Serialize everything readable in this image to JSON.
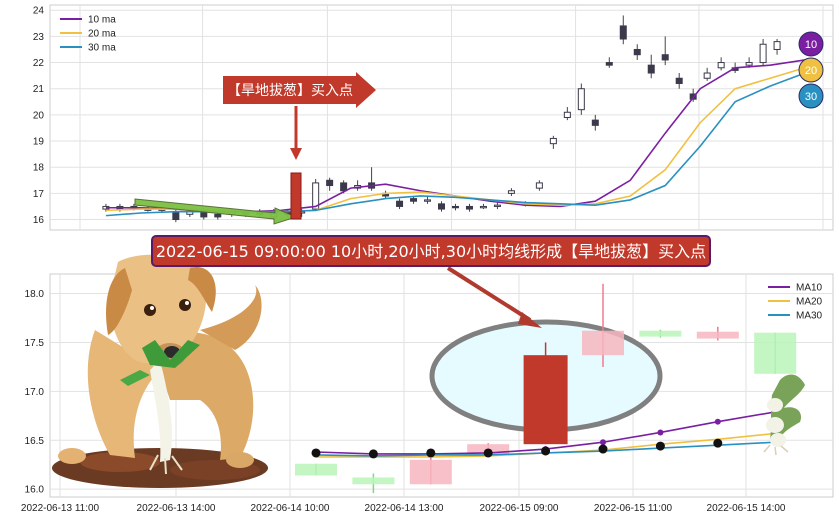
{
  "colors": {
    "ma10": "#7b1fa2",
    "ma20": "#f0c040",
    "ma30": "#2a90c0",
    "candle_up": "#c0392b",
    "candle_down_light": "#f7b6c0",
    "candle_green": "#b9f5b9",
    "banner_bg": "#c0392b",
    "banner_border": "#5a1a6a",
    "ellipse_stroke": "#808080",
    "ellipse_fill": "#e6fbff"
  },
  "annotations": {
    "arrow_label": "【旱地拔葱】买入点",
    "banner_text": "2022-06-15 09:00:00 10小时,20小时,30小时均线形成【旱地拔葱】买入点"
  },
  "badges": [
    "10",
    "20",
    "30"
  ],
  "chart_data": [
    {
      "type": "line",
      "name": "top-overview",
      "legend": [
        "10 ma",
        "20 ma",
        "30 ma"
      ],
      "legend_position": "top-left",
      "grid": true,
      "ylim": [
        15.6,
        24.2
      ],
      "yticks": [
        "16",
        "17",
        "18",
        "19",
        "20",
        "21",
        "22",
        "23",
        "24"
      ],
      "x": [
        0,
        5,
        10,
        15,
        20,
        25,
        30,
        35,
        40,
        45,
        50,
        55,
        60,
        65,
        70,
        75,
        80,
        85,
        90,
        95,
        100
      ],
      "series": [
        {
          "name": "10 ma",
          "values": [
            16.45,
            16.45,
            16.4,
            16.3,
            16.3,
            16.35,
            16.5,
            17.2,
            17.35,
            17.1,
            16.9,
            16.7,
            16.55,
            16.5,
            16.7,
            17.5,
            19.3,
            21.0,
            21.8,
            21.9,
            22.1
          ]
        },
        {
          "name": "20 ma",
          "values": [
            16.35,
            16.4,
            16.4,
            16.35,
            16.3,
            16.3,
            16.35,
            16.8,
            17.0,
            17.05,
            16.9,
            16.75,
            16.6,
            16.55,
            16.6,
            16.9,
            17.9,
            19.7,
            21.0,
            21.4,
            21.8
          ]
        },
        {
          "name": "30 ma",
          "values": [
            16.15,
            16.25,
            16.3,
            16.3,
            16.3,
            16.3,
            16.35,
            16.6,
            16.8,
            16.9,
            16.85,
            16.75,
            16.65,
            16.6,
            16.55,
            16.75,
            17.3,
            18.8,
            20.5,
            21.1,
            21.6
          ]
        }
      ],
      "candles": [
        {
          "x": 0,
          "o": 16.4,
          "c": 16.5,
          "h": 16.6,
          "l": 16.3
        },
        {
          "x": 2,
          "o": 16.5,
          "c": 16.4,
          "h": 16.6,
          "l": 16.3
        },
        {
          "x": 4,
          "o": 16.5,
          "c": 16.45,
          "h": 16.6,
          "l": 16.35
        },
        {
          "x": 6,
          "o": 16.4,
          "c": 16.35,
          "h": 16.5,
          "l": 16.3
        },
        {
          "x": 8,
          "o": 16.35,
          "c": 16.4,
          "h": 16.5,
          "l": 16.25
        },
        {
          "x": 10,
          "o": 16.3,
          "c": 16.0,
          "h": 16.4,
          "l": 15.9
        },
        {
          "x": 12,
          "o": 16.2,
          "c": 16.3,
          "h": 16.4,
          "l": 16.1
        },
        {
          "x": 14,
          "o": 16.3,
          "c": 16.1,
          "h": 16.4,
          "l": 16.0
        },
        {
          "x": 16,
          "o": 16.2,
          "c": 16.1,
          "h": 16.3,
          "l": 16.0
        },
        {
          "x": 18,
          "o": 16.2,
          "c": 16.3,
          "h": 16.4,
          "l": 16.1
        },
        {
          "x": 20,
          "o": 16.2,
          "c": 16.25,
          "h": 16.35,
          "l": 16.1
        },
        {
          "x": 22,
          "o": 16.3,
          "c": 16.2,
          "h": 16.4,
          "l": 16.1
        },
        {
          "x": 24,
          "o": 16.1,
          "c": 16.3,
          "h": 16.4,
          "l": 16.0
        },
        {
          "x": 26,
          "o": 16.3,
          "c": 16.2,
          "h": 16.4,
          "l": 16.1
        },
        {
          "x": 28,
          "o": 16.25,
          "c": 16.3,
          "h": 16.4,
          "l": 16.1
        },
        {
          "x": 30,
          "o": 16.4,
          "c": 17.4,
          "h": 17.55,
          "l": 16.35
        },
        {
          "x": 32,
          "o": 17.5,
          "c": 17.3,
          "h": 17.6,
          "l": 17.1
        },
        {
          "x": 34,
          "o": 17.4,
          "c": 17.1,
          "h": 17.5,
          "l": 17.0
        },
        {
          "x": 36,
          "o": 17.2,
          "c": 17.3,
          "h": 17.5,
          "l": 17.1
        },
        {
          "x": 38,
          "o": 17.4,
          "c": 17.2,
          "h": 18.0,
          "l": 17.1
        },
        {
          "x": 40,
          "o": 17.0,
          "c": 16.9,
          "h": 17.1,
          "l": 16.8
        },
        {
          "x": 42,
          "o": 16.7,
          "c": 16.5,
          "h": 16.8,
          "l": 16.4
        },
        {
          "x": 44,
          "o": 16.8,
          "c": 16.7,
          "h": 16.9,
          "l": 16.6
        },
        {
          "x": 46,
          "o": 16.7,
          "c": 16.75,
          "h": 16.9,
          "l": 16.6
        },
        {
          "x": 48,
          "o": 16.6,
          "c": 16.4,
          "h": 16.7,
          "l": 16.3
        },
        {
          "x": 50,
          "o": 16.5,
          "c": 16.45,
          "h": 16.6,
          "l": 16.35
        },
        {
          "x": 52,
          "o": 16.5,
          "c": 16.4,
          "h": 16.6,
          "l": 16.3
        },
        {
          "x": 54,
          "o": 16.45,
          "c": 16.5,
          "h": 16.6,
          "l": 16.4
        },
        {
          "x": 56,
          "o": 16.5,
          "c": 16.55,
          "h": 16.65,
          "l": 16.4
        },
        {
          "x": 58,
          "o": 17.0,
          "c": 17.1,
          "h": 17.2,
          "l": 16.9
        },
        {
          "x": 60,
          "o": 16.6,
          "c": 16.55,
          "h": 16.7,
          "l": 16.5
        },
        {
          "x": 62,
          "o": 17.2,
          "c": 17.4,
          "h": 17.5,
          "l": 17.1
        },
        {
          "x": 64,
          "o": 18.9,
          "c": 19.1,
          "h": 19.2,
          "l": 18.7
        },
        {
          "x": 66,
          "o": 19.9,
          "c": 20.1,
          "h": 20.3,
          "l": 19.8
        },
        {
          "x": 68,
          "o": 20.2,
          "c": 21.0,
          "h": 21.2,
          "l": 20.0
        },
        {
          "x": 70,
          "o": 19.8,
          "c": 19.6,
          "h": 20.0,
          "l": 19.4
        },
        {
          "x": 72,
          "o": 22.0,
          "c": 21.9,
          "h": 22.2,
          "l": 21.8
        },
        {
          "x": 74,
          "o": 23.4,
          "c": 22.9,
          "h": 23.8,
          "l": 22.7
        },
        {
          "x": 76,
          "o": 22.5,
          "c": 22.3,
          "h": 22.7,
          "l": 22.1
        },
        {
          "x": 78,
          "o": 21.9,
          "c": 21.6,
          "h": 22.3,
          "l": 21.4
        },
        {
          "x": 80,
          "o": 22.3,
          "c": 22.1,
          "h": 23.0,
          "l": 21.9
        },
        {
          "x": 82,
          "o": 21.4,
          "c": 21.2,
          "h": 21.6,
          "l": 21.0
        },
        {
          "x": 84,
          "o": 20.8,
          "c": 20.6,
          "h": 21.0,
          "l": 20.5
        },
        {
          "x": 86,
          "o": 21.4,
          "c": 21.6,
          "h": 21.8,
          "l": 21.3
        },
        {
          "x": 88,
          "o": 21.8,
          "c": 22.0,
          "h": 22.2,
          "l": 21.7
        },
        {
          "x": 90,
          "o": 21.8,
          "c": 21.7,
          "h": 22.0,
          "l": 21.6
        },
        {
          "x": 92,
          "o": 21.9,
          "c": 22.0,
          "h": 22.2,
          "l": 21.8
        },
        {
          "x": 94,
          "o": 22.0,
          "c": 22.7,
          "h": 22.9,
          "l": 21.9
        },
        {
          "x": 96,
          "o": 22.5,
          "c": 22.8,
          "h": 22.9,
          "l": 22.3
        }
      ]
    },
    {
      "type": "line",
      "name": "bottom-zoom",
      "legend": [
        "MA10",
        "MA20",
        "MA30"
      ],
      "legend_position": "top-right",
      "grid": true,
      "ylim": [
        15.92,
        18.2
      ],
      "yticks": [
        "16.0",
        "16.5",
        "17.0",
        "17.5",
        "18.0"
      ],
      "categories": [
        "2022-06-13 11:00",
        "2022-06-13 14:00",
        "2022-06-14 10:00",
        "2022-06-14 13:00",
        "2022-06-15 09:00",
        "2022-06-15 11:00",
        "2022-06-15 14:00"
      ],
      "x": [
        0,
        1,
        2,
        3,
        4,
        5,
        6,
        7,
        8
      ],
      "series": [
        {
          "name": "MA10",
          "values": [
            16.38,
            16.36,
            16.36,
            16.37,
            16.41,
            16.48,
            16.58,
            16.69,
            16.79
          ]
        },
        {
          "name": "MA20",
          "values": [
            16.33,
            16.33,
            16.33,
            16.34,
            16.37,
            16.4,
            16.46,
            16.51,
            16.57
          ]
        },
        {
          "name": "MA30",
          "values": [
            16.35,
            16.34,
            16.35,
            16.35,
            16.37,
            16.39,
            16.42,
            16.45,
            16.48
          ]
        }
      ],
      "candles": [
        {
          "x": 0,
          "o": 16.26,
          "c": 16.14,
          "h": 16.26,
          "l": 16.14,
          "color": "green"
        },
        {
          "x": 1,
          "o": 16.12,
          "c": 16.05,
          "h": 16.16,
          "l": 15.96,
          "color": "green"
        },
        {
          "x": 2,
          "o": 16.05,
          "c": 16.3,
          "h": 16.32,
          "l": 16.05,
          "color": "pink"
        },
        {
          "x": 3,
          "o": 16.36,
          "c": 16.46,
          "h": 16.47,
          "l": 16.35,
          "color": "pink"
        },
        {
          "x": 4,
          "o": 16.46,
          "c": 17.37,
          "h": 17.5,
          "l": 16.46,
          "color": "red"
        },
        {
          "x": 5,
          "o": 17.37,
          "c": 17.62,
          "h": 18.1,
          "l": 17.25,
          "color": "pink"
        },
        {
          "x": 6,
          "o": 17.62,
          "c": 17.56,
          "h": 17.63,
          "l": 17.55,
          "color": "green"
        },
        {
          "x": 7,
          "o": 17.54,
          "c": 17.61,
          "h": 17.66,
          "l": 17.52,
          "color": "pink"
        },
        {
          "x": 8,
          "o": 17.6,
          "c": 17.18,
          "h": 17.6,
          "l": 17.18,
          "color": "green"
        }
      ]
    }
  ]
}
